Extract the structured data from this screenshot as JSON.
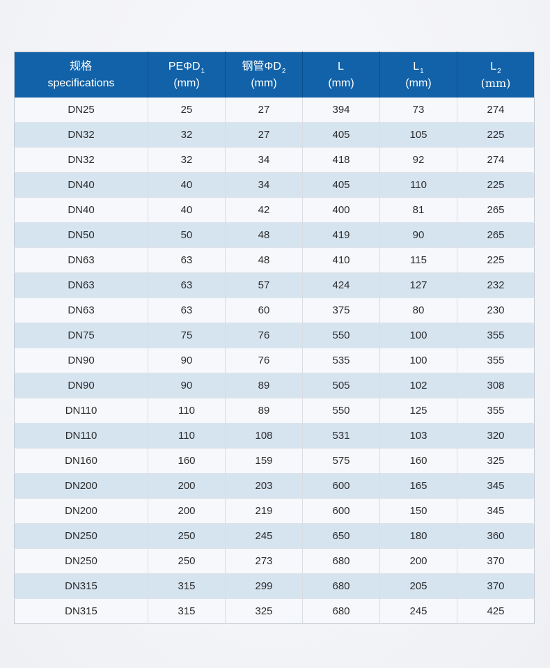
{
  "colors": {
    "header_bg": "#1162a8",
    "header_separator": "#0b4e8c",
    "row_white_bg": "#f6f8fb",
    "row_blue_bg": "#d6e4f0",
    "data_text": "#2d2d2d",
    "header_text": "#ffffff"
  },
  "table": {
    "headers": [
      {
        "main": "规格",
        "sub": "",
        "unit": "specifications"
      },
      {
        "main": "PEΦD",
        "sub": "1",
        "unit": "(mm)"
      },
      {
        "main": "钢管ΦD",
        "sub": "2",
        "unit": "(mm)"
      },
      {
        "main": "L",
        "sub": "",
        "unit": "(mm)"
      },
      {
        "main": "L",
        "sub": "1",
        "unit": "(mm)"
      },
      {
        "main": "L",
        "sub": "2",
        "unit": "(mm)"
      }
    ],
    "rows": [
      [
        "DN25",
        "25",
        "27",
        "394",
        "73",
        "274"
      ],
      [
        "DN32",
        "32",
        "27",
        "405",
        "105",
        "225"
      ],
      [
        "DN32",
        "32",
        "34",
        "418",
        "92",
        "274"
      ],
      [
        "DN40",
        "40",
        "34",
        "405",
        "110",
        "225"
      ],
      [
        "DN40",
        "40",
        "42",
        "400",
        "81",
        "265"
      ],
      [
        "DN50",
        "50",
        "48",
        "419",
        "90",
        "265"
      ],
      [
        "DN63",
        "63",
        "48",
        "410",
        "115",
        "225"
      ],
      [
        "DN63",
        "63",
        "57",
        "424",
        "127",
        "232"
      ],
      [
        "DN63",
        "63",
        "60",
        "375",
        "80",
        "230"
      ],
      [
        "DN75",
        "75",
        "76",
        "550",
        "100",
        "355"
      ],
      [
        "DN90",
        "90",
        "76",
        "535",
        "100",
        "355"
      ],
      [
        "DN90",
        "90",
        "89",
        "505",
        "102",
        "308"
      ],
      [
        "DN110",
        "110",
        "89",
        "550",
        "125",
        "355"
      ],
      [
        "DN110",
        "110",
        "108",
        "531",
        "103",
        "320"
      ],
      [
        "DN160",
        "160",
        "159",
        "575",
        "160",
        "325"
      ],
      [
        "DN200",
        "200",
        "203",
        "600",
        "165",
        "345"
      ],
      [
        "DN200",
        "200",
        "219",
        "600",
        "150",
        "345"
      ],
      [
        "DN250",
        "250",
        "245",
        "650",
        "180",
        "360"
      ],
      [
        "DN250",
        "250",
        "273",
        "680",
        "200",
        "370"
      ],
      [
        "DN315",
        "315",
        "299",
        "680",
        "205",
        "370"
      ],
      [
        "DN315",
        "315",
        "325",
        "680",
        "245",
        "425"
      ]
    ]
  },
  "chart_data": {
    "type": "table",
    "title": "规格 specifications",
    "columns": [
      "规格 specifications",
      "PEΦD1 (mm)",
      "钢管ΦD2 (mm)",
      "L (mm)",
      "L1 (mm)",
      "L2 (mm)"
    ],
    "rows": [
      [
        "DN25",
        25,
        27,
        394,
        73,
        274
      ],
      [
        "DN32",
        32,
        27,
        405,
        105,
        225
      ],
      [
        "DN32",
        32,
        34,
        418,
        92,
        274
      ],
      [
        "DN40",
        40,
        34,
        405,
        110,
        225
      ],
      [
        "DN40",
        40,
        42,
        400,
        81,
        265
      ],
      [
        "DN50",
        50,
        48,
        419,
        90,
        265
      ],
      [
        "DN63",
        63,
        48,
        410,
        115,
        225
      ],
      [
        "DN63",
        63,
        57,
        424,
        127,
        232
      ],
      [
        "DN63",
        63,
        60,
        375,
        80,
        230
      ],
      [
        "DN75",
        75,
        76,
        550,
        100,
        355
      ],
      [
        "DN90",
        90,
        76,
        535,
        100,
        355
      ],
      [
        "DN90",
        90,
        89,
        505,
        102,
        308
      ],
      [
        "DN110",
        110,
        89,
        550,
        125,
        355
      ],
      [
        "DN110",
        110,
        108,
        531,
        103,
        320
      ],
      [
        "DN160",
        160,
        159,
        575,
        160,
        325
      ],
      [
        "DN200",
        200,
        203,
        600,
        165,
        345
      ],
      [
        "DN200",
        200,
        219,
        600,
        150,
        345
      ],
      [
        "DN250",
        250,
        245,
        650,
        180,
        360
      ],
      [
        "DN250",
        250,
        273,
        680,
        200,
        370
      ],
      [
        "DN315",
        315,
        299,
        680,
        205,
        370
      ],
      [
        "DN315",
        315,
        325,
        680,
        245,
        425
      ]
    ]
  }
}
